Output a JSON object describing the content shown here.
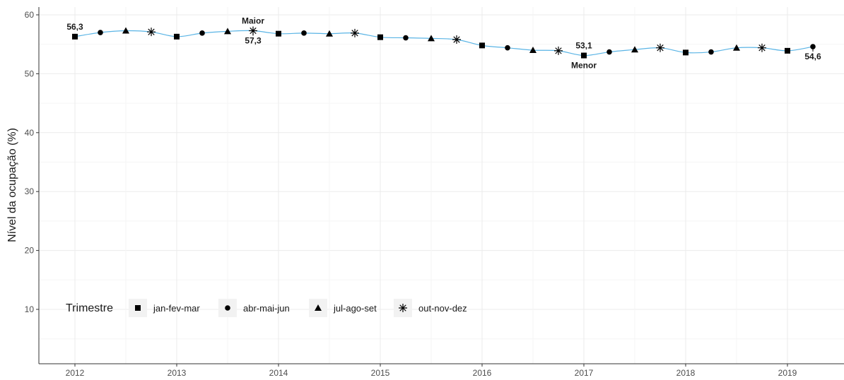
{
  "chart_data": {
    "type": "line",
    "title": "",
    "xlabel": "",
    "ylabel": "Nível da ocupação (%)",
    "ylim": [
      0,
      61
    ],
    "yticks": [
      10,
      20,
      30,
      40,
      50,
      60
    ],
    "xlim": [
      2011.6,
      2019.5
    ],
    "xticks": [
      2012,
      2013,
      2014,
      2015,
      2016,
      2017,
      2018,
      2019
    ],
    "x_tick_labels": [
      "2012",
      "2013",
      "2014",
      "2015",
      "2016",
      "2017",
      "2018",
      "2019"
    ],
    "grid": true,
    "line_color": "#5ab4e5",
    "point_color": "#000000",
    "legend": {
      "title": "Trimestre",
      "placement": "bottom-left",
      "entries": [
        {
          "label": "jan-fev-mar",
          "shape": "square"
        },
        {
          "label": "abr-mai-jun",
          "shape": "circle"
        },
        {
          "label": "jul-ago-set",
          "shape": "triangle"
        },
        {
          "label": "out-nov-dez",
          "shape": "asterisk"
        }
      ]
    },
    "series": [
      {
        "points": [
          {
            "x": 2012.0,
            "y": 56.3,
            "shape": "square"
          },
          {
            "x": 2012.25,
            "y": 57.0,
            "shape": "circle"
          },
          {
            "x": 2012.5,
            "y": 57.3,
            "shape": "triangle"
          },
          {
            "x": 2012.75,
            "y": 57.1,
            "shape": "asterisk"
          },
          {
            "x": 2013.0,
            "y": 56.3,
            "shape": "square"
          },
          {
            "x": 2013.25,
            "y": 56.9,
            "shape": "circle"
          },
          {
            "x": 2013.5,
            "y": 57.2,
            "shape": "triangle"
          },
          {
            "x": 2013.75,
            "y": 57.3,
            "shape": "asterisk"
          },
          {
            "x": 2014.0,
            "y": 56.8,
            "shape": "square"
          },
          {
            "x": 2014.25,
            "y": 56.9,
            "shape": "circle"
          },
          {
            "x": 2014.5,
            "y": 56.8,
            "shape": "triangle"
          },
          {
            "x": 2014.75,
            "y": 56.9,
            "shape": "asterisk"
          },
          {
            "x": 2015.0,
            "y": 56.2,
            "shape": "square"
          },
          {
            "x": 2015.25,
            "y": 56.1,
            "shape": "circle"
          },
          {
            "x": 2015.5,
            "y": 56.0,
            "shape": "triangle"
          },
          {
            "x": 2015.75,
            "y": 55.8,
            "shape": "asterisk"
          },
          {
            "x": 2016.0,
            "y": 54.8,
            "shape": "square"
          },
          {
            "x": 2016.25,
            "y": 54.4,
            "shape": "circle"
          },
          {
            "x": 2016.5,
            "y": 54.0,
            "shape": "triangle"
          },
          {
            "x": 2016.75,
            "y": 53.9,
            "shape": "asterisk"
          },
          {
            "x": 2017.0,
            "y": 53.1,
            "shape": "square"
          },
          {
            "x": 2017.25,
            "y": 53.7,
            "shape": "circle"
          },
          {
            "x": 2017.5,
            "y": 54.1,
            "shape": "triangle"
          },
          {
            "x": 2017.75,
            "y": 54.4,
            "shape": "asterisk"
          },
          {
            "x": 2018.0,
            "y": 53.6,
            "shape": "square"
          },
          {
            "x": 2018.25,
            "y": 53.7,
            "shape": "circle"
          },
          {
            "x": 2018.5,
            "y": 54.4,
            "shape": "triangle"
          },
          {
            "x": 2018.75,
            "y": 54.4,
            "shape": "asterisk"
          },
          {
            "x": 2019.0,
            "y": 53.9,
            "shape": "square"
          },
          {
            "x": 2019.25,
            "y": 54.6,
            "shape": "circle"
          }
        ]
      }
    ],
    "annotations": [
      {
        "x": 2012.0,
        "y": 56.3,
        "lines": [
          "56,3"
        ],
        "position": "above"
      },
      {
        "x": 2013.75,
        "y": 57.3,
        "lines": [
          "Maior"
        ],
        "position": "above"
      },
      {
        "x": 2013.75,
        "y": 57.3,
        "lines": [
          "57,3"
        ],
        "position": "below"
      },
      {
        "x": 2017.0,
        "y": 53.1,
        "lines": [
          "53,1"
        ],
        "position": "above"
      },
      {
        "x": 2017.0,
        "y": 53.1,
        "lines": [
          "Menor"
        ],
        "position": "below"
      },
      {
        "x": 2019.25,
        "y": 54.6,
        "lines": [
          "54,6"
        ],
        "position": "below"
      }
    ]
  }
}
